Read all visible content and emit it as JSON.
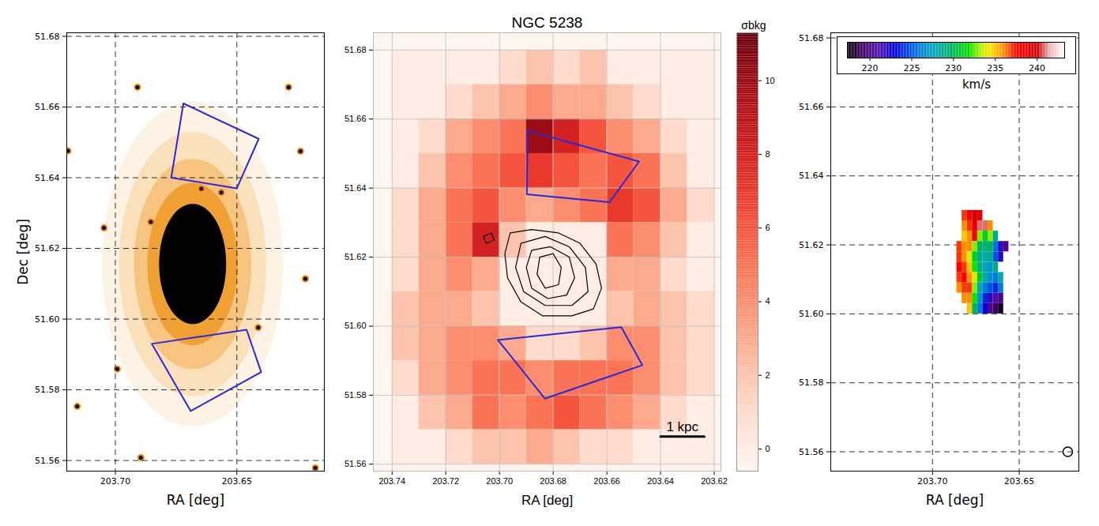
{
  "chart_data": [
    {
      "type": "image",
      "xlabel": "RA [deg]",
      "ylabel": "Dec [deg]",
      "xlim": [
        203.72,
        203.614
      ],
      "ylim": [
        51.557,
        51.681
      ],
      "xticks": [
        {
          "value": 203.7,
          "label": "203.70"
        },
        {
          "value": 203.65,
          "label": "203.65"
        }
      ],
      "yticks": [
        51.56,
        51.58,
        {
          "value": 51.6,
          "label": "51.60"
        },
        51.62,
        51.64,
        51.66,
        51.68
      ],
      "grid": true,
      "galaxy": {
        "ra": 203.6682,
        "dec": 51.6156,
        "ra_semi": 0.0138,
        "dec_semi": 0.017
      },
      "sources": [
        [
          203.7047,
          51.6258
        ],
        [
          203.6854,
          51.6275
        ],
        [
          203.6238,
          51.6475
        ],
        [
          203.6895,
          51.5608
        ],
        [
          203.6177,
          51.5579
        ],
        [
          203.7195,
          51.6476
        ],
        [
          203.6646,
          51.6369
        ],
        [
          203.6564,
          51.6358
        ],
        [
          203.6909,
          51.6656
        ],
        [
          203.6287,
          51.6656
        ],
        [
          203.6412,
          51.5976
        ],
        [
          203.6218,
          51.6114
        ],
        [
          203.6992,
          51.5859
        ],
        [
          203.7157,
          51.5753
        ]
      ],
      "regions": [
        [
          [
            203.672,
            51.661
          ],
          [
            203.641,
            51.651
          ],
          [
            203.65,
            51.637
          ],
          [
            203.677,
            51.64
          ]
        ],
        [
          [
            203.685,
            51.593
          ],
          [
            203.646,
            51.597
          ],
          [
            203.64,
            51.585
          ],
          [
            203.669,
            51.574
          ]
        ]
      ],
      "color": "#2a2ad8"
    },
    {
      "type": "heatmap",
      "title": "NGC 5238",
      "xlabel": "RA [deg]",
      "xlim": [
        203.747,
        203.6175
      ],
      "ylim": [
        51.558,
        51.685
      ],
      "xticks": [
        203.74,
        203.72,
        {
          "value": 203.7,
          "label": "203.70"
        },
        203.68,
        203.66,
        203.64,
        203.62
      ],
      "yticks": [
        51.56,
        51.58,
        {
          "value": 51.6,
          "label": "51.60"
        },
        51.62,
        51.64,
        51.66,
        51.68
      ],
      "grid": true,
      "ra": [
        203.735,
        203.725,
        203.715,
        203.705,
        203.695,
        203.685,
        203.675,
        203.665,
        203.655,
        203.645,
        203.635,
        203.625
      ],
      "dec": [
        51.675,
        51.665,
        51.655,
        51.645,
        51.635,
        51.625,
        51.615,
        51.605,
        51.595,
        51.585,
        51.575,
        51.565
      ],
      "values": [
        [
          0,
          0,
          0,
          0,
          1,
          2,
          1,
          2,
          0,
          0,
          0,
          0
        ],
        [
          0,
          0,
          1,
          2,
          3,
          4,
          3,
          3,
          2,
          1,
          0,
          0
        ],
        [
          0,
          1,
          3,
          4,
          5,
          10,
          8,
          6,
          4,
          3,
          1,
          0
        ],
        [
          0,
          2,
          4,
          5,
          6,
          7,
          6,
          5,
          6,
          5,
          2,
          0
        ],
        [
          1,
          3,
          5,
          6,
          4,
          3,
          4,
          5,
          7,
          6,
          3,
          1
        ],
        [
          1,
          3,
          5,
          8,
          2,
          0,
          0,
          0,
          5,
          4,
          2,
          0
        ],
        [
          1,
          3,
          4,
          3,
          0,
          0,
          0,
          0,
          3,
          3,
          1,
          0
        ],
        [
          2,
          3,
          3,
          2,
          0,
          0,
          0,
          0,
          2,
          3,
          2,
          1
        ],
        [
          2,
          3,
          4,
          4,
          3,
          1,
          1,
          2,
          4,
          4,
          2,
          1
        ],
        [
          1,
          3,
          4,
          5,
          5,
          4,
          5,
          5,
          5,
          4,
          2,
          1
        ],
        [
          0,
          2,
          3,
          5,
          4,
          5,
          6,
          5,
          4,
          3,
          1,
          0
        ],
        [
          0,
          0,
          1,
          2,
          2,
          3,
          2,
          1,
          1,
          0,
          0,
          0
        ]
      ],
      "colorbar": {
        "label": "σbkg",
        "range": [
          -0.6,
          11.3
        ],
        "ticks": [
          0,
          2,
          4,
          6,
          8,
          10
        ]
      },
      "contours": [
        [
          [
            203.696,
            51.627
          ],
          [
            203.688,
            51.628
          ],
          [
            203.678,
            51.627
          ],
          [
            203.67,
            51.624
          ],
          [
            203.664,
            51.618
          ],
          [
            203.662,
            51.611
          ],
          [
            203.665,
            51.605
          ],
          [
            203.673,
            51.603
          ],
          [
            203.684,
            51.603
          ],
          [
            203.692,
            51.607
          ],
          [
            203.697,
            51.614
          ],
          [
            203.698,
            51.621
          ]
        ],
        [
          [
            203.692,
            51.624
          ],
          [
            203.683,
            51.626
          ],
          [
            203.674,
            51.623
          ],
          [
            203.668,
            51.617
          ],
          [
            203.667,
            51.61
          ],
          [
            203.673,
            51.606
          ],
          [
            203.683,
            51.606
          ],
          [
            203.691,
            51.61
          ],
          [
            203.694,
            51.617
          ]
        ],
        [
          [
            203.688,
            51.622
          ],
          [
            203.681,
            51.623
          ],
          [
            203.674,
            51.62
          ],
          [
            203.672,
            51.614
          ],
          [
            203.675,
            51.609
          ],
          [
            203.682,
            51.608
          ],
          [
            203.688,
            51.611
          ],
          [
            203.69,
            51.617
          ]
        ],
        [
          [
            203.685,
            51.62
          ],
          [
            203.68,
            51.621
          ],
          [
            203.677,
            51.617
          ],
          [
            203.678,
            51.612
          ],
          [
            203.683,
            51.611
          ],
          [
            203.686,
            51.615
          ]
        ],
        [
          [
            203.706,
            51.626
          ],
          [
            203.703,
            51.627
          ],
          [
            203.702,
            51.625
          ],
          [
            203.705,
            51.624
          ]
        ]
      ],
      "regions": [
        [
          [
            203.6895,
            51.6566
          ],
          [
            203.648,
            51.6477
          ],
          [
            203.659,
            51.6359
          ],
          [
            203.6898,
            51.6382
          ]
        ],
        [
          [
            203.7006,
            51.596
          ],
          [
            203.6546,
            51.5997
          ],
          [
            203.6468,
            51.5887
          ],
          [
            203.6831,
            51.579
          ]
        ]
      ],
      "color": "#2a2ad8",
      "scalebar": {
        "label": "1 kpc",
        "ra": [
          203.64,
          203.6237
        ],
        "dec": 51.568
      }
    },
    {
      "type": "velocity_map",
      "xlabel": "RA [deg]",
      "xlim": [
        203.7587,
        203.6156
      ],
      "ylim": [
        51.5544,
        51.6815
      ],
      "xticks": [
        {
          "value": 203.7,
          "label": "203.70"
        },
        {
          "value": 203.65,
          "label": "203.65"
        }
      ],
      "yticks": [
        51.56,
        51.58,
        {
          "value": 51.6,
          "label": "51.60"
        },
        51.62,
        51.64,
        51.66,
        51.68
      ],
      "grid": true,
      "ra": [
        203.6845,
        203.6815,
        203.6785,
        203.6755,
        203.6725,
        203.6695,
        203.6665,
        203.6635,
        203.6605,
        203.6575
      ],
      "dec": [
        51.6285,
        51.6255,
        51.6225,
        51.6195,
        51.6165,
        51.6135,
        51.6105,
        51.6075,
        51.6045,
        51.6015
      ],
      "values": [
        [
          null,
          237,
          238,
          240,
          239,
          null,
          null,
          null,
          null,
          null
        ],
        [
          null,
          236,
          237,
          239,
          241,
          241,
          236,
          null,
          null,
          null
        ],
        [
          null,
          235,
          236,
          238,
          233,
          231,
          233,
          229,
          null,
          null
        ],
        [
          237,
          236,
          236,
          233,
          230,
          229,
          230,
          226,
          222,
          220
        ],
        [
          237,
          236,
          234,
          231,
          229,
          228,
          229,
          225,
          222,
          null
        ],
        [
          238,
          237,
          235,
          232,
          229,
          228,
          227,
          229,
          null,
          null
        ],
        [
          237,
          238,
          236,
          234,
          231,
          228,
          227,
          226,
          228,
          null
        ],
        [
          236,
          237,
          237,
          233,
          228,
          226,
          225,
          224,
          226,
          null
        ],
        [
          null,
          236,
          236,
          232,
          227,
          224,
          222,
          221,
          220,
          null
        ],
        [
          null,
          null,
          235,
          230,
          226,
          223,
          220,
          219,
          218,
          null
        ]
      ],
      "colorbar": {
        "label": "km/s",
        "range": [
          217.3,
          243.3
        ],
        "ticks": [
          220,
          225,
          230,
          235,
          240
        ]
      },
      "beam": [
        203.622,
        51.56
      ]
    }
  ]
}
